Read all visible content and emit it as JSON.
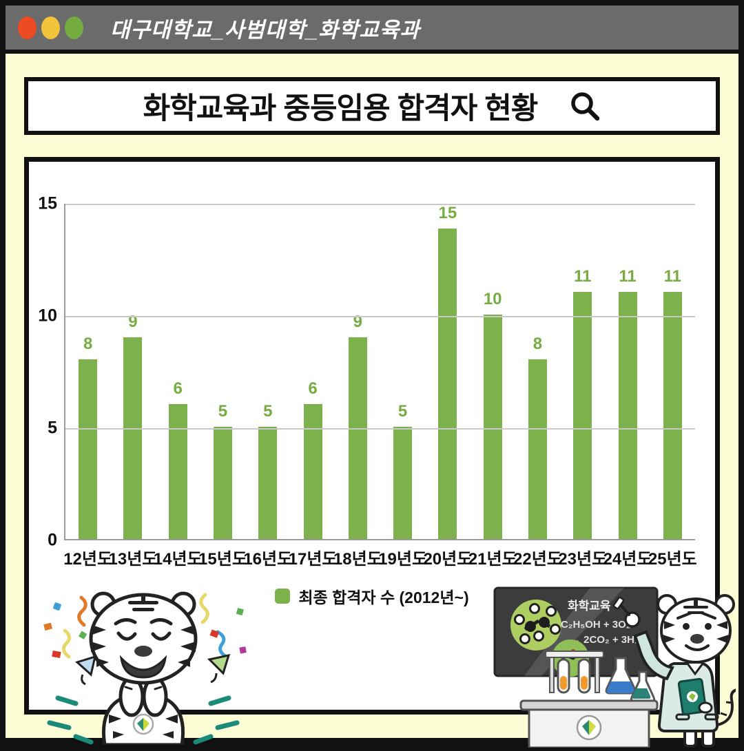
{
  "window": {
    "titlebar_text": "대구대학교_사범대학_화학교육과",
    "dot_colors": [
      "#EE4B23",
      "#F3C33B",
      "#74AC41"
    ]
  },
  "search_box": {
    "title": "화학교육과 중등임용 합격자 현황",
    "icon": "magnifier-icon"
  },
  "chart_data": {
    "type": "bar",
    "categories": [
      "12년도",
      "13년도",
      "14년도",
      "15년도",
      "16년도",
      "17년도",
      "18년도",
      "19년도",
      "20년도",
      "21년도",
      "22년도",
      "23년도",
      "24년도",
      "25년도"
    ],
    "values": [
      8,
      9,
      6,
      5,
      5,
      6,
      9,
      5,
      15,
      10,
      8,
      11,
      11,
      11
    ],
    "title": "화학교육과 중등임용 합격자 현황",
    "xlabel": "",
    "ylabel": "",
    "ylim": [
      0,
      15
    ],
    "yticks": [
      0,
      5,
      10,
      15
    ],
    "grid": true,
    "legend_label": "최종 합격자 수 (2012년~)",
    "legend_position": "bottom",
    "bar_color": "#7CB14B",
    "value_label_color": "#76AC41"
  },
  "blackboard": {
    "line1": "화학교육",
    "line2": "C₂H₅OH + 3O₂",
    "line3": "→ 2CO₂ + 3H₂O"
  },
  "mascots": {
    "left": "celebrating white tiger mascot with confetti",
    "right": "tiger mascot in lab coat pointing at chemistry blackboard"
  },
  "colors": {
    "background": "#FCFCD5",
    "titlebar": "#6B6B6B",
    "frame": "#111111",
    "gridline": "#C9C9C9",
    "axis": "#9A9A9A"
  }
}
